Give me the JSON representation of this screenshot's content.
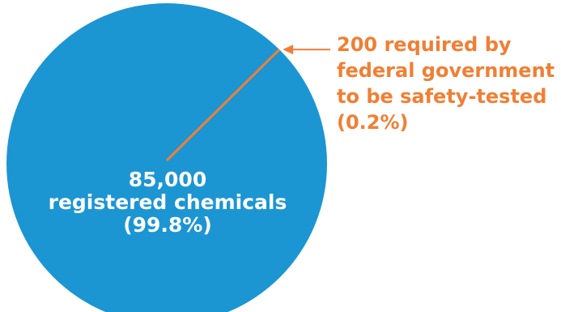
{
  "chart_data": {
    "type": "pie",
    "title": "",
    "slices": [
      {
        "label_lines": [
          "85,000",
          "registered chemicals",
          "(99.8%)"
        ],
        "value": 85000,
        "percent": 99.8,
        "color": "#1c95d3"
      },
      {
        "label_lines": [
          "200 required by",
          "federal government",
          "to be safety-tested",
          "(0.2%)"
        ],
        "value": 200,
        "percent": 0.2,
        "color": "#f07f34"
      }
    ],
    "legend": "none"
  },
  "colors": {
    "pie_main": "#1c95d3",
    "accent": "#f07f34",
    "background": "#ffffff"
  }
}
